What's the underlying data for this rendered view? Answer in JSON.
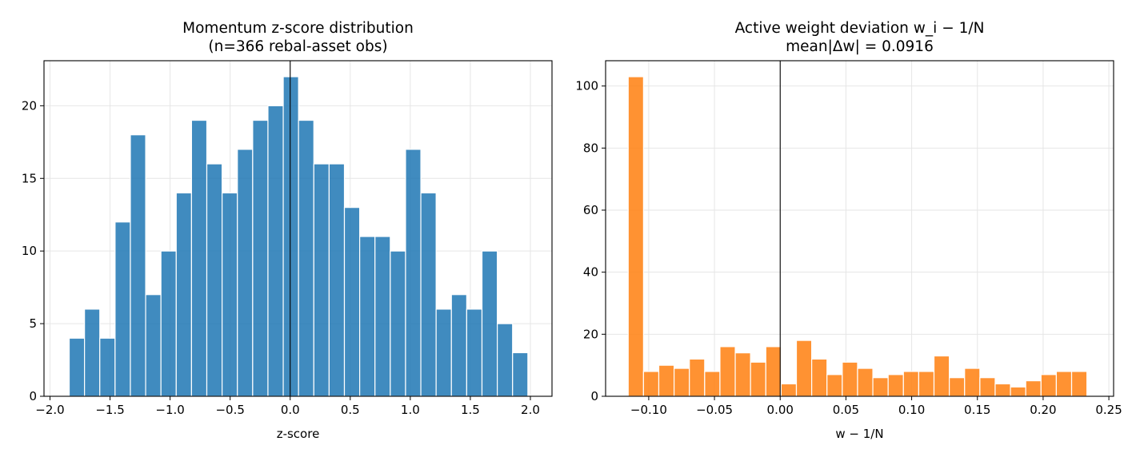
{
  "chart_data": [
    {
      "type": "bar",
      "title": "Momentum z-score distribution",
      "subtitle": "(n=366 rebal-asset obs)",
      "xlabel": "z-score",
      "ylabel": "",
      "xlim": [
        -2.05,
        2.18
      ],
      "ylim": [
        0,
        23.1
      ],
      "xticks": [
        -2.0,
        -1.5,
        -1.0,
        -0.5,
        0.0,
        0.5,
        1.0,
        1.5,
        2.0
      ],
      "xtick_labels": [
        "−2.0",
        "−1.5",
        "−1.0",
        "−0.5",
        "0.0",
        "0.5",
        "1.0",
        "1.5",
        "2.0"
      ],
      "yticks": [
        0,
        5,
        10,
        15,
        20
      ],
      "ytick_labels": [
        "0",
        "5",
        "10",
        "15",
        "20"
      ],
      "bin_start": -1.84,
      "bin_width": 0.1273,
      "values": [
        4,
        6,
        4,
        12,
        18,
        7,
        10,
        14,
        19,
        16,
        14,
        17,
        19,
        20,
        22,
        19,
        16,
        16,
        13,
        11,
        11,
        10,
        17,
        14,
        6,
        7,
        6,
        10,
        5,
        3
      ],
      "vline": 0.0,
      "grid": true,
      "color": "#1f77b4"
    },
    {
      "type": "bar",
      "title": "Active weight deviation w_i − 1/N",
      "subtitle": "mean|Δw| = 0.0916",
      "xlabel": "w − 1/N",
      "ylabel": "",
      "xlim": [
        -0.1328,
        0.2536
      ],
      "ylim": [
        0,
        108.15
      ],
      "xticks": [
        -0.1,
        -0.05,
        0.0,
        0.05,
        0.1,
        0.15,
        0.2,
        0.25
      ],
      "xtick_labels": [
        "−0.10",
        "−0.05",
        "0.00",
        "0.05",
        "0.10",
        "0.15",
        "0.20",
        "0.25"
      ],
      "yticks": [
        0,
        20,
        40,
        60,
        80,
        100
      ],
      "ytick_labels": [
        "0",
        "20",
        "40",
        "60",
        "80",
        "100"
      ],
      "bin_start": -0.1156,
      "bin_width": 0.01163,
      "values": [
        103,
        8,
        10,
        9,
        12,
        8,
        16,
        14,
        11,
        16,
        4,
        18,
        12,
        7,
        11,
        9,
        6,
        7,
        8,
        8,
        13,
        6,
        9,
        6,
        4,
        3,
        5,
        7,
        8,
        8
      ],
      "vline": 0.0,
      "grid": true,
      "color": "#ff7f0e"
    }
  ]
}
